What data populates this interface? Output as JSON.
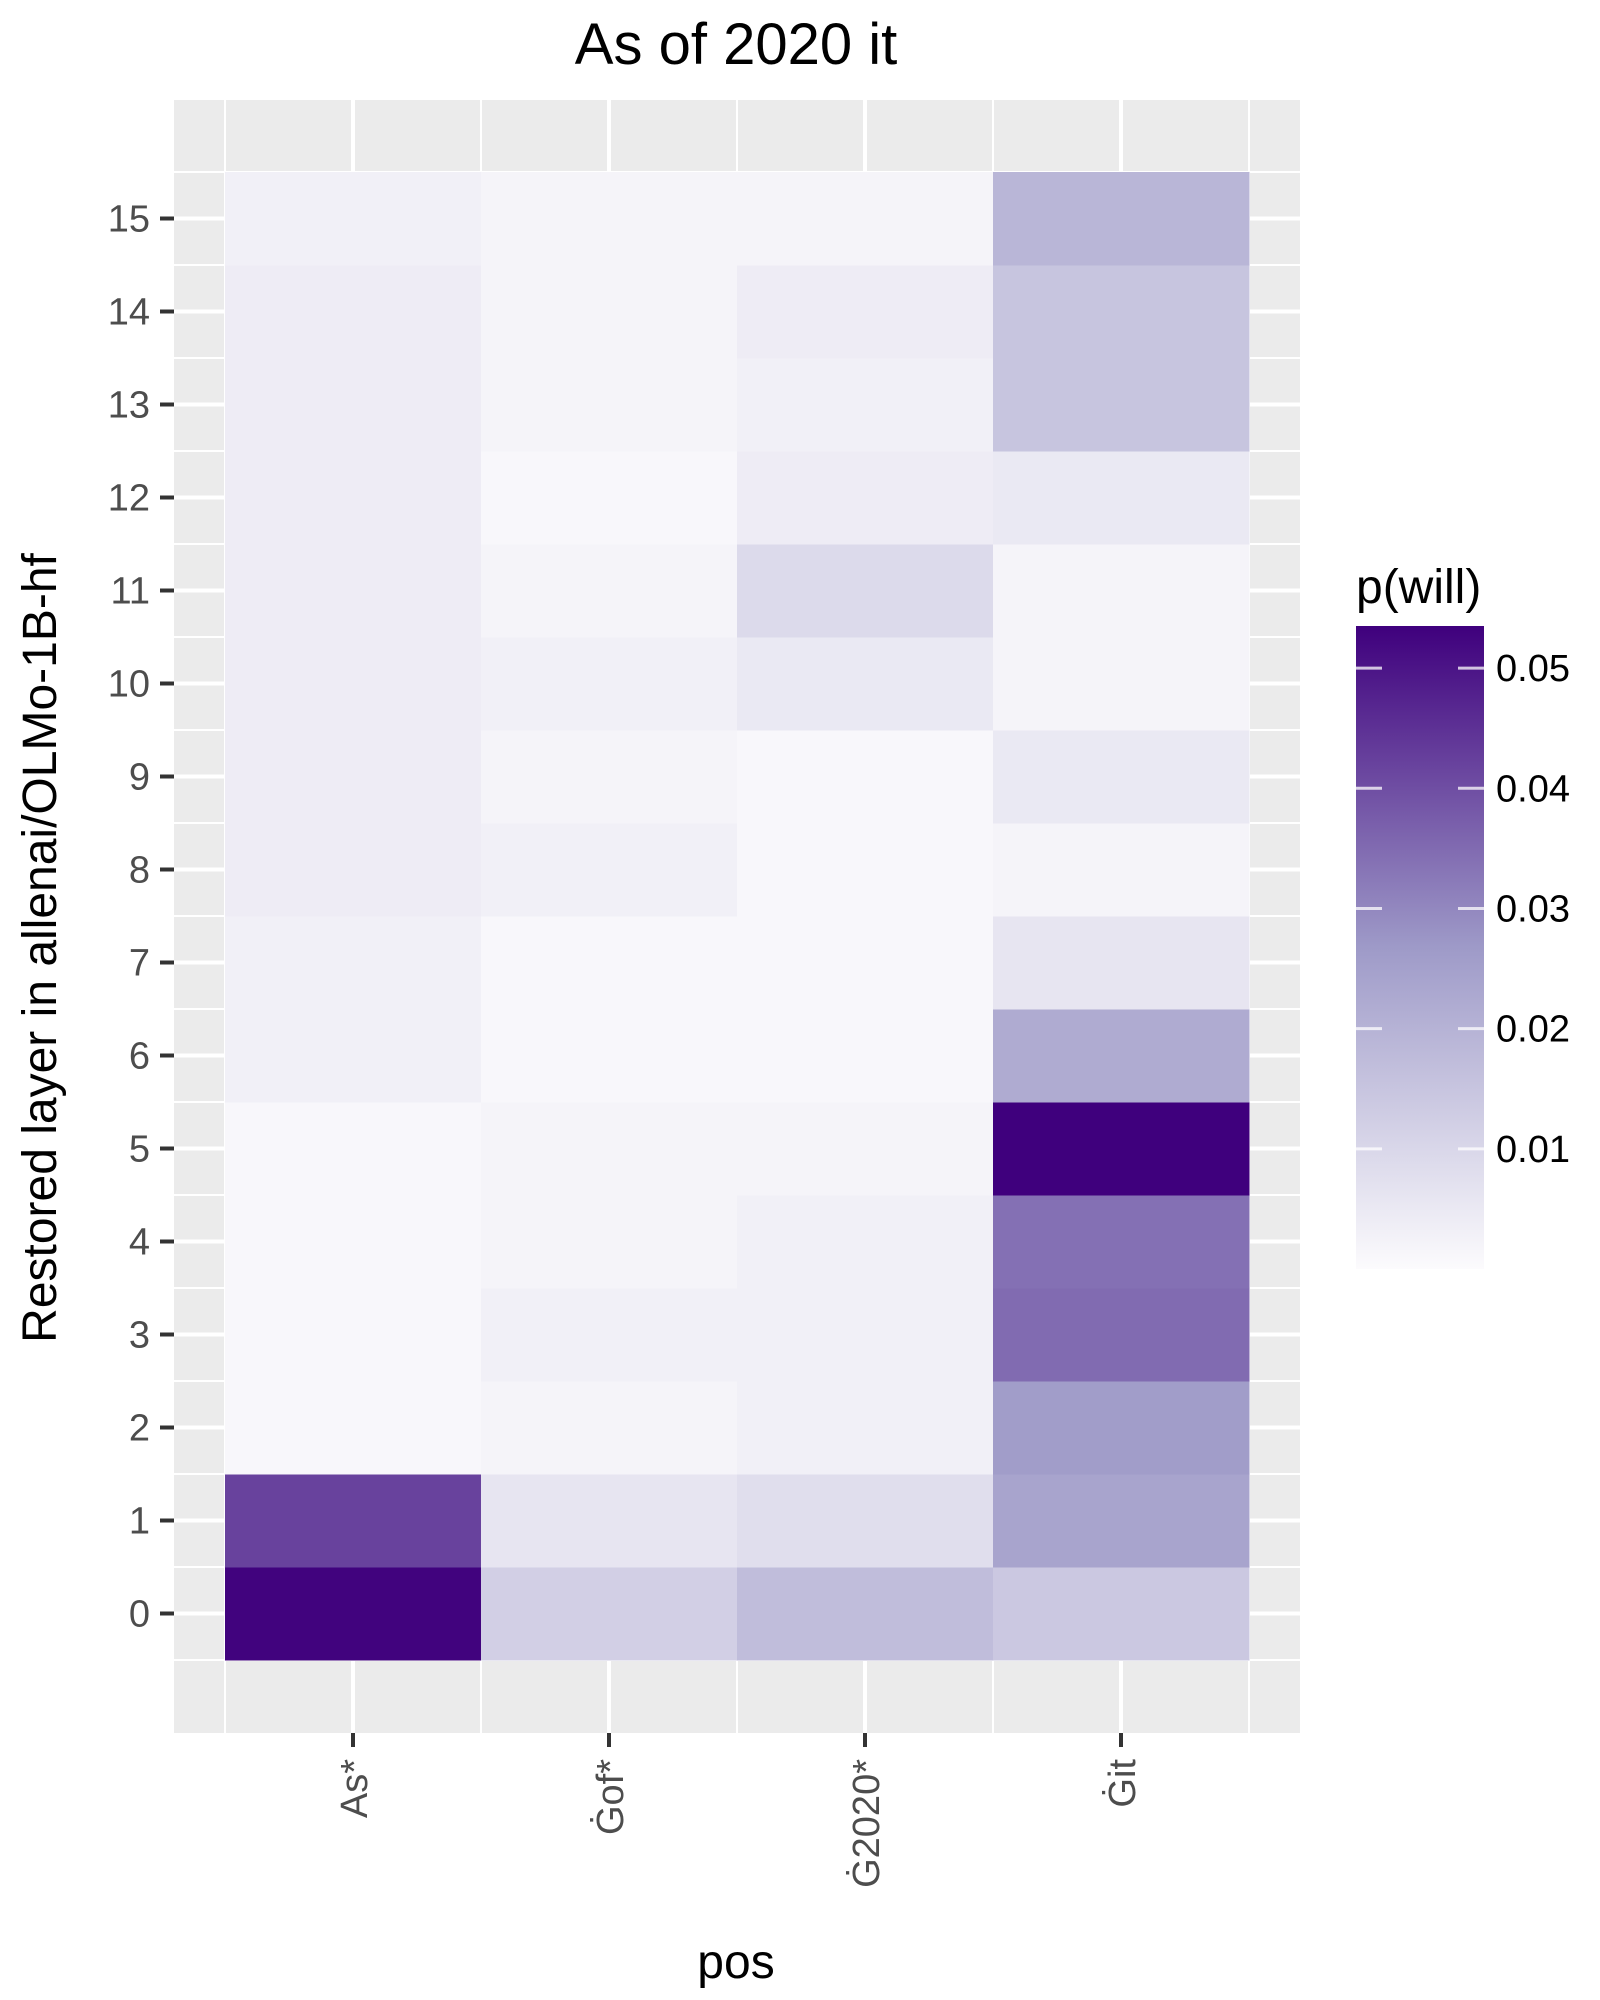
{
  "chart_data": {
    "type": "heatmap",
    "title": "As of 2020 it",
    "xlabel": "pos",
    "ylabel": "Restored layer in allenai/OLMo-1B-hf",
    "x_categories": [
      "As*",
      "Ġof*",
      "Ġ2020*",
      "Ġit"
    ],
    "y_categories": [
      0,
      1,
      2,
      3,
      4,
      5,
      6,
      7,
      8,
      9,
      10,
      11,
      12,
      13,
      14,
      15
    ],
    "values": [
      [
        0.053,
        0.012,
        0.017,
        0.014
      ],
      [
        0.042,
        0.006,
        0.008,
        0.024
      ],
      [
        0.001,
        0.002,
        0.003,
        0.026
      ],
      [
        0.001,
        0.003,
        0.003,
        0.035
      ],
      [
        0.001,
        0.002,
        0.003,
        0.034
      ],
      [
        0.001,
        0.002,
        0.002,
        0.055
      ],
      [
        0.003,
        0.001,
        0.001,
        0.022
      ],
      [
        0.003,
        0.001,
        0.001,
        0.006
      ],
      [
        0.004,
        0.003,
        0.001,
        0.002
      ],
      [
        0.004,
        0.002,
        0.001,
        0.005
      ],
      [
        0.004,
        0.003,
        0.005,
        0.002
      ],
      [
        0.004,
        0.002,
        0.009,
        0.002
      ],
      [
        0.004,
        0.001,
        0.004,
        0.005
      ],
      [
        0.004,
        0.002,
        0.003,
        0.015
      ],
      [
        0.004,
        0.002,
        0.004,
        0.015
      ],
      [
        0.003,
        0.002,
        0.002,
        0.019
      ]
    ],
    "legend": {
      "title": "p(will)",
      "min": 0.0,
      "max": 0.0535,
      "ticks": [
        0.01,
        0.02,
        0.03,
        0.04,
        0.05
      ],
      "tick_labels": [
        "0.01",
        "0.02",
        "0.03",
        "0.04",
        "0.05"
      ],
      "position": "right"
    },
    "colors": {
      "low": "#fcfbfd",
      "mid": "#9e9ac8",
      "high": "#3f007d",
      "panel_background": "#ebebeb",
      "grid": "#ffffff",
      "tick_color": "#333333"
    },
    "grid": true
  }
}
